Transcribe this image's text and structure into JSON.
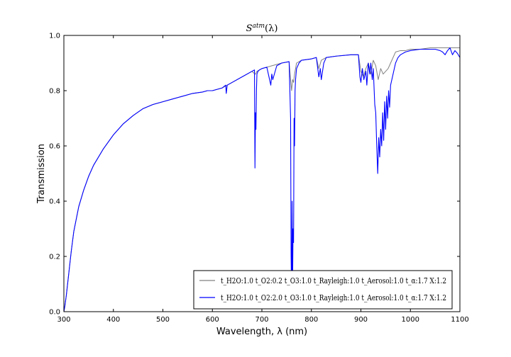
{
  "chart_data": {
    "type": "line",
    "title": "S^{atm}(λ)",
    "title_base": "S",
    "title_sup": "atm",
    "title_arg": "(λ)",
    "xlabel": "Wavelength, λ (nm)",
    "ylabel": "Transmission",
    "xlim": [
      300,
      1100
    ],
    "ylim": [
      0.0,
      1.0
    ],
    "xticks": [
      300,
      400,
      500,
      600,
      700,
      800,
      900,
      1000,
      1100
    ],
    "xtick_labels": [
      "300",
      "400",
      "500",
      "600",
      "700",
      "800",
      "900",
      "1000",
      "1100"
    ],
    "yticks": [
      0.0,
      0.2,
      0.4,
      0.6,
      0.8,
      1.0
    ],
    "ytick_labels": [
      "0.0",
      "0.2",
      "0.4",
      "0.6",
      "0.8",
      "1.0"
    ],
    "grid": false,
    "legend_position": "lower-right",
    "series": [
      {
        "name": "t_{H2O}:1.0 t_{O2}:0.2 t_{O3}:1.0 t_{Rayleigh}:1.0 t_{Aerosol}:1.0 t_α:1.7 X:1.2",
        "legend_label": "t_H2O:1.0 t_O2:0.2 t_O3:1.0 t_Rayleigh:1.0 t_Aerosol:1.0 t_α:1.7 X:1.2",
        "color": "#808080",
        "x": [
          300,
          302,
          305,
          310,
          315,
          320,
          330,
          340,
          350,
          360,
          380,
          400,
          420,
          440,
          460,
          480,
          500,
          520,
          540,
          560,
          580,
          590,
          600,
          620,
          630,
          640,
          660,
          680,
          686,
          687,
          690,
          700,
          710,
          720,
          740,
          755,
          758,
          760,
          762,
          764,
          766,
          768,
          770,
          780,
          800,
          810,
          815,
          820,
          830,
          850,
          880,
          895,
          900,
          905,
          910,
          915,
          920,
          925,
          930,
          935,
          940,
          945,
          950,
          955,
          960,
          965,
          970,
          980,
          990,
          1000,
          1020,
          1040,
          1050,
          1060,
          1070,
          1080,
          1090,
          1100
        ],
        "y": [
          0.0,
          0.02,
          0.06,
          0.14,
          0.22,
          0.29,
          0.38,
          0.44,
          0.49,
          0.53,
          0.59,
          0.64,
          0.68,
          0.71,
          0.735,
          0.75,
          0.76,
          0.77,
          0.78,
          0.79,
          0.795,
          0.8,
          0.8,
          0.81,
          0.82,
          0.83,
          0.85,
          0.87,
          0.86,
          0.86,
          0.87,
          0.88,
          0.885,
          0.89,
          0.9,
          0.905,
          0.84,
          0.8,
          0.84,
          0.83,
          0.86,
          0.88,
          0.9,
          0.91,
          0.915,
          0.92,
          0.88,
          0.91,
          0.92,
          0.925,
          0.93,
          0.93,
          0.87,
          0.85,
          0.88,
          0.9,
          0.86,
          0.91,
          0.89,
          0.84,
          0.88,
          0.86,
          0.87,
          0.88,
          0.9,
          0.92,
          0.94,
          0.945,
          0.945,
          0.95,
          0.95,
          0.955,
          0.955,
          0.955,
          0.955,
          0.955,
          0.955,
          0.955
        ]
      },
      {
        "name": "t_{H2O}:1.0 t_{O2}:2.0 t_{O3}:1.0 t_{Rayleigh}:1.0 t_{Aerosol}:1.0 t_α:1.7 X:1.2",
        "legend_label": "t_H2O:1.0 t_O2:2.0 t_O3:1.0 t_Rayleigh:1.0 t_Aerosol:1.0 t_α:1.7 X:1.2",
        "color": "#0000ff",
        "x": [
          300,
          302,
          305,
          310,
          315,
          320,
          330,
          340,
          350,
          360,
          380,
          400,
          420,
          440,
          460,
          480,
          500,
          520,
          540,
          560,
          580,
          590,
          600,
          620,
          627,
          628,
          630,
          640,
          660,
          680,
          685,
          686,
          687,
          688,
          689,
          690,
          692,
          695,
          700,
          710,
          718,
          720,
          722,
          730,
          740,
          755,
          758,
          759,
          760,
          761,
          762,
          763,
          764,
          765,
          766,
          767,
          768,
          770,
          775,
          780,
          800,
          810,
          815,
          818,
          820,
          825,
          830,
          850,
          880,
          895,
          898,
          900,
          903,
          906,
          910,
          912,
          915,
          918,
          920,
          923,
          925,
          928,
          930,
          932,
          934,
          936,
          938,
          940,
          942,
          944,
          946,
          948,
          950,
          952,
          954,
          956,
          958,
          960,
          965,
          970,
          975,
          980,
          990,
          1000,
          1020,
          1040,
          1050,
          1060,
          1065,
          1070,
          1075,
          1080,
          1085,
          1090,
          1095,
          1100
        ],
        "y": [
          0.0,
          0.02,
          0.06,
          0.14,
          0.22,
          0.29,
          0.38,
          0.44,
          0.49,
          0.53,
          0.59,
          0.64,
          0.68,
          0.71,
          0.735,
          0.75,
          0.76,
          0.77,
          0.78,
          0.79,
          0.795,
          0.8,
          0.8,
          0.81,
          0.82,
          0.79,
          0.82,
          0.83,
          0.85,
          0.87,
          0.875,
          0.52,
          0.72,
          0.66,
          0.8,
          0.86,
          0.87,
          0.875,
          0.88,
          0.885,
          0.82,
          0.86,
          0.84,
          0.89,
          0.9,
          0.905,
          0.7,
          0.2,
          0.05,
          0.4,
          0.1,
          0.3,
          0.25,
          0.7,
          0.6,
          0.8,
          0.84,
          0.88,
          0.9,
          0.91,
          0.915,
          0.92,
          0.85,
          0.88,
          0.84,
          0.9,
          0.92,
          0.925,
          0.93,
          0.93,
          0.85,
          0.83,
          0.88,
          0.84,
          0.87,
          0.82,
          0.9,
          0.86,
          0.9,
          0.84,
          0.88,
          0.75,
          0.72,
          0.6,
          0.5,
          0.63,
          0.56,
          0.66,
          0.6,
          0.72,
          0.62,
          0.76,
          0.66,
          0.78,
          0.7,
          0.8,
          0.74,
          0.82,
          0.86,
          0.9,
          0.92,
          0.93,
          0.94,
          0.945,
          0.95,
          0.95,
          0.95,
          0.945,
          0.94,
          0.93,
          0.945,
          0.955,
          0.93,
          0.945,
          0.935,
          0.92
        ]
      }
    ]
  }
}
